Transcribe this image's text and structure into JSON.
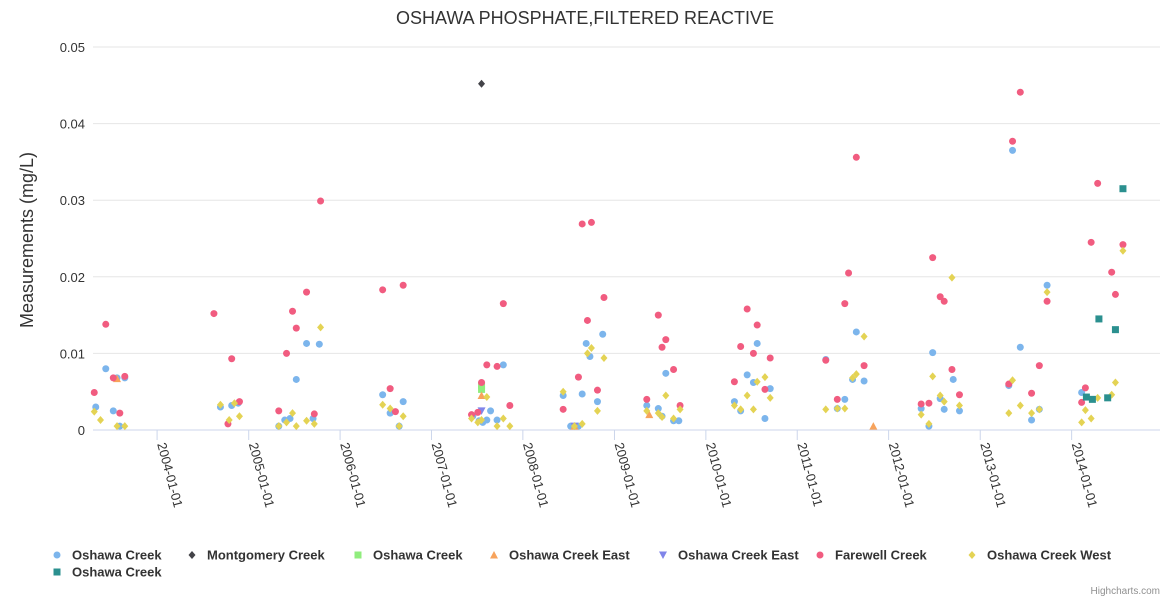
{
  "chart_data": {
    "type": "scatter",
    "title": "OSHAWA PHOSPHATE,FILTERED REACTIVE",
    "ylabel": "Measurements (mg/L)",
    "xlabel": "",
    "ylim": [
      0,
      0.05
    ],
    "xlim": [
      "2003-04-20",
      "2014-12-20"
    ],
    "y_ticks": [
      "0",
      "0.01",
      "0.02",
      "0.03",
      "0.04",
      "0.05"
    ],
    "x_ticks": [
      "2004-01-01",
      "2005-01-01",
      "2006-01-01",
      "2007-01-01",
      "2008-01-01",
      "2009-01-01",
      "2010-01-01",
      "2011-01-01",
      "2012-01-01",
      "2013-01-01",
      "2014-01-01"
    ],
    "legend_position": "bottom",
    "grid": true,
    "credits": "Highcharts.com",
    "series": [
      {
        "name": "Oshawa Creek",
        "color": "#7cb5ec",
        "marker": "circle",
        "points": [
          [
            "2003-05-01",
            0.003
          ],
          [
            "2003-06-10",
            0.008
          ],
          [
            "2003-07-10",
            0.0025
          ],
          [
            "2003-07-25",
            0.0068
          ],
          [
            "2003-08-05",
            0.0005
          ],
          [
            "2003-08-25",
            0.0068
          ],
          [
            "2004-09-10",
            0.003
          ],
          [
            "2004-10-25",
            0.0032
          ],
          [
            "2004-11-20",
            0.0035
          ],
          [
            "2005-05-01",
            0.0005
          ],
          [
            "2005-05-25",
            0.0013
          ],
          [
            "2005-06-15",
            0.0015
          ],
          [
            "2005-07-10",
            0.0066
          ],
          [
            "2005-08-20",
            0.0113
          ],
          [
            "2005-09-15",
            0.0015
          ],
          [
            "2005-10-10",
            0.0112
          ],
          [
            "2006-06-20",
            0.0046
          ],
          [
            "2006-07-20",
            0.0022
          ],
          [
            "2006-08-25",
            0.0005
          ],
          [
            "2006-09-10",
            0.0037
          ],
          [
            "2007-06-15",
            0.0018
          ],
          [
            "2007-07-10",
            0.0012
          ],
          [
            "2007-07-25",
            0.001
          ],
          [
            "2007-08-10",
            0.0013
          ],
          [
            "2007-08-25",
            0.0025
          ],
          [
            "2007-09-20",
            0.0013
          ],
          [
            "2007-10-15",
            0.0085
          ],
          [
            "2008-06-10",
            0.0045
          ],
          [
            "2008-07-10",
            0.0005
          ],
          [
            "2008-08-10",
            0.0005
          ],
          [
            "2008-08-25",
            0.0047
          ],
          [
            "2008-09-10",
            0.0113
          ],
          [
            "2008-09-25",
            0.0096
          ],
          [
            "2008-10-25",
            0.0037
          ],
          [
            "2008-11-15",
            0.0125
          ],
          [
            "2009-05-10",
            0.0032
          ],
          [
            "2009-06-25",
            0.0028
          ],
          [
            "2009-07-10",
            0.0018
          ],
          [
            "2009-07-25",
            0.0074
          ],
          [
            "2009-08-25",
            0.0012
          ],
          [
            "2009-09-15",
            0.0012
          ],
          [
            "2010-04-25",
            0.0037
          ],
          [
            "2010-05-20",
            0.0025
          ],
          [
            "2010-06-15",
            0.0072
          ],
          [
            "2010-07-10",
            0.0062
          ],
          [
            "2010-07-25",
            0.0113
          ],
          [
            "2010-08-25",
            0.0015
          ],
          [
            "2010-09-15",
            0.0054
          ],
          [
            "2011-04-25",
            0.0092
          ],
          [
            "2011-06-10",
            0.0028
          ],
          [
            "2011-07-10",
            0.004
          ],
          [
            "2011-08-10",
            0.0066
          ],
          [
            "2011-08-25",
            0.0128
          ],
          [
            "2011-09-25",
            0.0064
          ],
          [
            "2012-05-10",
            0.0028
          ],
          [
            "2012-06-10",
            0.0005
          ],
          [
            "2012-06-25",
            0.0101
          ],
          [
            "2012-07-25",
            0.0041
          ],
          [
            "2012-08-10",
            0.0027
          ],
          [
            "2012-09-15",
            0.0066
          ],
          [
            "2012-10-10",
            0.0025
          ],
          [
            "2013-04-25",
            0.0058
          ],
          [
            "2013-05-10",
            0.0365
          ],
          [
            "2013-06-10",
            0.0108
          ],
          [
            "2013-07-25",
            0.0013
          ],
          [
            "2013-08-25",
            0.0027
          ],
          [
            "2013-09-25",
            0.0189
          ],
          [
            "2014-02-10",
            0.0049
          ]
        ]
      },
      {
        "name": "Montgomery Creek",
        "color": "#434348",
        "marker": "diamond",
        "points": [
          [
            "2007-07-20",
            0.0452
          ]
        ]
      },
      {
        "name": "Oshawa Creek",
        "color": "#90ed7d",
        "marker": "square",
        "points": [
          [
            "2007-07-20",
            0.0058
          ],
          [
            "2007-07-20",
            0.0053
          ]
        ]
      },
      {
        "name": "Oshawa Creek East",
        "color": "#f7a35c",
        "marker": "triangle",
        "points": [
          [
            "2003-07-25",
            0.0067
          ],
          [
            "2007-07-20",
            0.0045
          ],
          [
            "2008-07-25",
            0.0005
          ],
          [
            "2009-05-20",
            0.002
          ],
          [
            "2011-11-01",
            0.0005
          ]
        ]
      },
      {
        "name": "Oshawa Creek East",
        "color": "#8085e9",
        "marker": "triangle-down",
        "points": [
          [
            "2007-07-20",
            0.0025
          ],
          [
            "2008-07-25",
            0.0005
          ]
        ]
      },
      {
        "name": "Farewell Creek",
        "color": "#f15c80",
        "marker": "circle",
        "points": [
          [
            "2003-04-25",
            0.0049
          ],
          [
            "2003-06-10",
            0.0138
          ],
          [
            "2003-07-10",
            0.0068
          ],
          [
            "2003-08-05",
            0.0022
          ],
          [
            "2003-08-25",
            0.007
          ],
          [
            "2004-08-15",
            0.0152
          ],
          [
            "2004-10-10",
            0.0008
          ],
          [
            "2004-10-25",
            0.0093
          ],
          [
            "2004-11-25",
            0.0037
          ],
          [
            "2005-05-01",
            0.0025
          ],
          [
            "2005-06-01",
            0.01
          ],
          [
            "2005-06-25",
            0.0155
          ],
          [
            "2005-07-10",
            0.0133
          ],
          [
            "2005-08-20",
            0.018
          ],
          [
            "2005-09-20",
            0.0021
          ],
          [
            "2005-10-15",
            0.0299
          ],
          [
            "2006-06-20",
            0.0183
          ],
          [
            "2006-07-20",
            0.0054
          ],
          [
            "2006-08-10",
            0.0024
          ],
          [
            "2006-09-10",
            0.0189
          ],
          [
            "2007-06-10",
            0.002
          ],
          [
            "2007-07-05",
            0.0023
          ],
          [
            "2007-07-20",
            0.0062
          ],
          [
            "2007-08-10",
            0.0085
          ],
          [
            "2007-09-20",
            0.0083
          ],
          [
            "2007-10-15",
            0.0165
          ],
          [
            "2007-11-10",
            0.0032
          ],
          [
            "2008-06-10",
            0.0027
          ],
          [
            "2008-08-10",
            0.0069
          ],
          [
            "2008-08-25",
            0.0269
          ],
          [
            "2008-09-15",
            0.0143
          ],
          [
            "2008-10-01",
            0.0271
          ],
          [
            "2008-10-25",
            0.0052
          ],
          [
            "2008-11-20",
            0.0173
          ],
          [
            "2009-05-10",
            0.004
          ],
          [
            "2009-06-25",
            0.015
          ],
          [
            "2009-07-10",
            0.0108
          ],
          [
            "2009-07-25",
            0.0118
          ],
          [
            "2009-08-25",
            0.0079
          ],
          [
            "2009-09-20",
            0.0032
          ],
          [
            "2010-04-25",
            0.0063
          ],
          [
            "2010-05-20",
            0.0109
          ],
          [
            "2010-06-15",
            0.0158
          ],
          [
            "2010-07-10",
            0.01
          ],
          [
            "2010-07-25",
            0.0137
          ],
          [
            "2010-08-25",
            0.0053
          ],
          [
            "2010-09-15",
            0.0094
          ],
          [
            "2011-04-25",
            0.0091
          ],
          [
            "2011-06-10",
            0.004
          ],
          [
            "2011-07-10",
            0.0165
          ],
          [
            "2011-07-25",
            0.0205
          ],
          [
            "2011-08-25",
            0.0356
          ],
          [
            "2011-09-25",
            0.0084
          ],
          [
            "2012-05-10",
            0.0034
          ],
          [
            "2012-06-10",
            0.0035
          ],
          [
            "2012-06-25",
            0.0225
          ],
          [
            "2012-07-25",
            0.0174
          ],
          [
            "2012-08-10",
            0.0168
          ],
          [
            "2012-09-10",
            0.0079
          ],
          [
            "2012-10-10",
            0.0046
          ],
          [
            "2013-04-25",
            0.006
          ],
          [
            "2013-05-10",
            0.0377
          ],
          [
            "2013-06-10",
            0.0441
          ],
          [
            "2013-07-25",
            0.0048
          ],
          [
            "2013-08-25",
            0.0084
          ],
          [
            "2013-09-25",
            0.0168
          ],
          [
            "2014-02-10",
            0.0036
          ],
          [
            "2014-02-25",
            0.0055
          ],
          [
            "2014-03-20",
            0.0245
          ],
          [
            "2014-04-15",
            0.0322
          ],
          [
            "2014-06-10",
            0.0206
          ],
          [
            "2014-06-25",
            0.0177
          ],
          [
            "2014-07-25",
            0.0242
          ]
        ]
      },
      {
        "name": "Oshawa Creek West",
        "color": "#e4d354",
        "marker": "diamond",
        "points": [
          [
            "2003-04-25",
            0.0024
          ],
          [
            "2003-05-20",
            0.0013
          ],
          [
            "2003-07-25",
            0.0005
          ],
          [
            "2003-08-25",
            0.0005
          ],
          [
            "2004-09-10",
            0.0033
          ],
          [
            "2004-10-15",
            0.0013
          ],
          [
            "2004-11-05",
            0.0035
          ],
          [
            "2004-11-25",
            0.0018
          ],
          [
            "2005-05-01",
            0.0005
          ],
          [
            "2005-06-01",
            0.001
          ],
          [
            "2005-06-25",
            0.0022
          ],
          [
            "2005-07-10",
            0.0005
          ],
          [
            "2005-08-20",
            0.0012
          ],
          [
            "2005-09-20",
            0.0008
          ],
          [
            "2005-10-15",
            0.0134
          ],
          [
            "2006-06-20",
            0.0033
          ],
          [
            "2006-07-20",
            0.0028
          ],
          [
            "2006-08-25",
            0.0005
          ],
          [
            "2006-09-10",
            0.0018
          ],
          [
            "2007-06-10",
            0.0015
          ],
          [
            "2007-07-05",
            0.001
          ],
          [
            "2007-07-20",
            0.0013
          ],
          [
            "2007-08-10",
            0.0043
          ],
          [
            "2007-09-20",
            0.0005
          ],
          [
            "2007-10-15",
            0.0015
          ],
          [
            "2007-11-10",
            0.0005
          ],
          [
            "2008-06-10",
            0.005
          ],
          [
            "2008-07-25",
            0.0005
          ],
          [
            "2008-08-25",
            0.0008
          ],
          [
            "2008-09-15",
            0.01
          ],
          [
            "2008-10-01",
            0.0107
          ],
          [
            "2008-10-25",
            0.0025
          ],
          [
            "2008-11-20",
            0.0094
          ],
          [
            "2009-05-10",
            0.0025
          ],
          [
            "2009-06-25",
            0.0022
          ],
          [
            "2009-07-10",
            0.0017
          ],
          [
            "2009-07-25",
            0.0045
          ],
          [
            "2009-08-25",
            0.0015
          ],
          [
            "2009-09-20",
            0.0027
          ],
          [
            "2010-04-25",
            0.0032
          ],
          [
            "2010-05-20",
            0.0027
          ],
          [
            "2010-06-15",
            0.0045
          ],
          [
            "2010-07-10",
            0.0027
          ],
          [
            "2010-07-25",
            0.0063
          ],
          [
            "2010-08-25",
            0.0069
          ],
          [
            "2010-09-15",
            0.0042
          ],
          [
            "2011-04-25",
            0.0027
          ],
          [
            "2011-06-10",
            0.0028
          ],
          [
            "2011-07-10",
            0.0028
          ],
          [
            "2011-08-10",
            0.0068
          ],
          [
            "2011-08-25",
            0.0073
          ],
          [
            "2011-09-25",
            0.0122
          ],
          [
            "2012-05-10",
            0.002
          ],
          [
            "2012-06-10",
            0.0008
          ],
          [
            "2012-06-25",
            0.007
          ],
          [
            "2012-07-25",
            0.0045
          ],
          [
            "2012-08-10",
            0.0037
          ],
          [
            "2012-09-10",
            0.0199
          ],
          [
            "2012-10-10",
            0.0032
          ],
          [
            "2013-04-25",
            0.0022
          ],
          [
            "2013-05-10",
            0.0065
          ],
          [
            "2013-06-10",
            0.0032
          ],
          [
            "2013-07-25",
            0.0022
          ],
          [
            "2013-08-25",
            0.0027
          ],
          [
            "2013-09-25",
            0.018
          ],
          [
            "2014-02-10",
            0.001
          ],
          [
            "2014-02-25",
            0.0026
          ],
          [
            "2014-03-20",
            0.0015
          ],
          [
            "2014-04-15",
            0.0042
          ],
          [
            "2014-06-10",
            0.0046
          ],
          [
            "2014-06-25",
            0.0062
          ],
          [
            "2014-07-25",
            0.0234
          ]
        ]
      },
      {
        "name": "Oshawa Creek",
        "color": "#2b908f",
        "marker": "square",
        "points": [
          [
            "2014-03-01",
            0.0043
          ],
          [
            "2014-03-25",
            0.004
          ],
          [
            "2014-04-20",
            0.0145
          ],
          [
            "2014-05-25",
            0.0042
          ],
          [
            "2014-06-25",
            0.0131
          ],
          [
            "2014-07-25",
            0.0315
          ]
        ]
      }
    ]
  }
}
